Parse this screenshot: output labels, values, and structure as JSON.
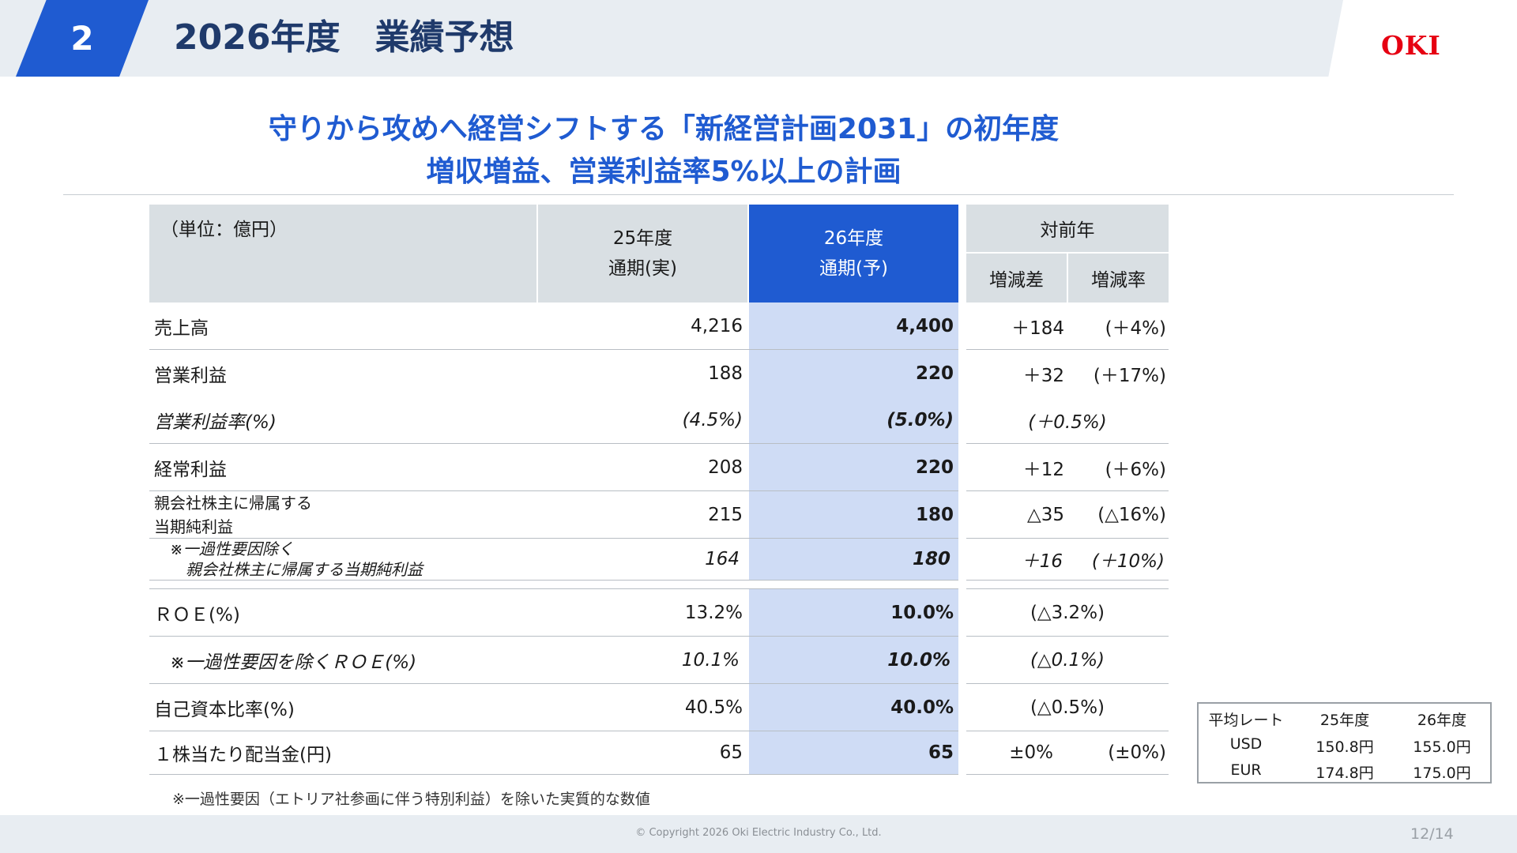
{
  "header": {
    "section_number": "2",
    "title": "2026年度　業績予想",
    "logo": "OKI"
  },
  "headline": {
    "line1": "守りから攻めへ経営シフトする「新経営計画2031」の初年度",
    "line2": "増収増益、営業利益率5%以上の計画"
  },
  "table": {
    "unit": "（単位：億円）",
    "col_fy25_line1": "25年度",
    "col_fy25_line2": "通期(実)",
    "col_fy26_line1": "26年度",
    "col_fy26_line2": "通期(予)",
    "col_yoy": "対前年",
    "col_diff": "増減差",
    "col_rate": "増減率",
    "rows": [
      {
        "label": "売上高",
        "fy25": "4,216",
        "fy26": "4,400",
        "diff": "＋184",
        "rate": "(＋4%)"
      },
      {
        "label": "営業利益",
        "fy25": "188",
        "fy26": "220",
        "diff": "＋32",
        "rate": "(＋17%)"
      },
      {
        "label": "営業利益率(%)",
        "fy25": "(4.5%)",
        "fy26": "(5.0%)",
        "yoy": "(＋0.5%)"
      },
      {
        "label": "経常利益",
        "fy25": "208",
        "fy26": "220",
        "diff": "＋12",
        "rate": "(＋6%)"
      },
      {
        "label_line1": "親会社株主に帰属する",
        "label_line2": "当期純利益",
        "fy25": "215",
        "fy26": "180",
        "diff": "△35",
        "rate": "(△16%)"
      },
      {
        "label_line1": "※一過性要因除く",
        "label_line2": "親会社株主に帰属する当期純利益",
        "fy25": "164",
        "fy26": "180",
        "diff": "＋16",
        "rate": "(＋10%)"
      },
      {
        "label": "ＲＯＥ(%)",
        "fy25": "13.2%",
        "fy26": "10.0%",
        "yoy": "(△3.2%)"
      },
      {
        "label": "※一過性要因を除くＲＯＥ(%)",
        "fy25": "10.1%",
        "fy26": "10.0%",
        "yoy": "(△0.1%)"
      },
      {
        "label": "自己資本比率(%)",
        "fy25": "40.5%",
        "fy26": "40.0%",
        "yoy": "(△0.5%)"
      },
      {
        "label": "１株当たり配当金(円)",
        "fy25": "65",
        "fy26": "65",
        "diff": "±0%",
        "rate": "(±0%)"
      }
    ],
    "footnote": "※一過性要因（エトリア社参画に伴う特別利益）を除いた実質的な数値"
  },
  "rates": {
    "header": [
      "平均レート",
      "25年度",
      "26年度"
    ],
    "rows": [
      [
        "USD",
        "150.8円",
        "155.0円"
      ],
      [
        "EUR",
        "174.8円",
        "175.0円"
      ]
    ]
  },
  "footer": {
    "copyright": "© Copyright 2026 Oki Electric Industry Co., Ltd.",
    "page": "12/14"
  },
  "colors": {
    "accent_blue": "#1f5bd1",
    "title_navy": "#1f3a6b",
    "highlight_col": "#cfdcf5",
    "logo_red": "#e60012"
  }
}
